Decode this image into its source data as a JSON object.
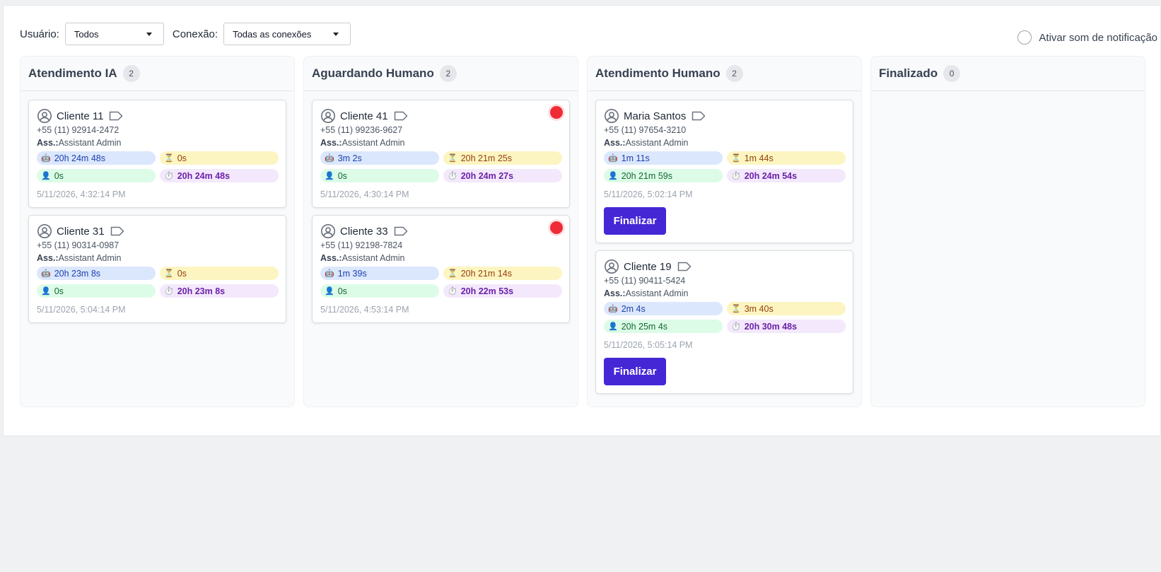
{
  "filters": {
    "user_label": "Usuário:",
    "user_value": "Todos",
    "conn_label": "Conexão:",
    "conn_value": "Todas as conexões"
  },
  "notification": {
    "label": "Ativar som de notificação"
  },
  "columns": [
    {
      "title": "Atendimento IA",
      "count": "2",
      "cards": [
        {
          "name": "Cliente 11",
          "phone": "+55 (11) 92914-2472",
          "ass_label": "Ass.:",
          "assignee": "Assistant Admin",
          "ai": "20h 24m 48s",
          "wait": "0s",
          "human": "0s",
          "total": "20h 24m 48s",
          "date": "5/11/2026, 4:32:14 PM"
        },
        {
          "name": "Cliente 31",
          "phone": "+55 (11) 90314-0987",
          "ass_label": "Ass.:",
          "assignee": "Assistant Admin",
          "ai": "20h 23m 8s",
          "wait": "0s",
          "human": "0s",
          "total": "20h 23m 8s",
          "date": "5/11/2026, 5:04:14 PM"
        }
      ]
    },
    {
      "title": "Aguardando Humano",
      "count": "2",
      "cards": [
        {
          "name": "Cliente 41",
          "phone": "+55 (11) 99236-9627",
          "ass_label": "Ass.:",
          "assignee": "Assistant Admin",
          "ai": "3m 2s",
          "wait": "20h 21m 25s",
          "human": "0s",
          "total": "20h 24m 27s",
          "date": "5/11/2026, 4:30:14 PM"
        },
        {
          "name": "Cliente 33",
          "phone": "+55 (11) 92198-7824",
          "ass_label": "Ass.:",
          "assignee": "Assistant Admin",
          "ai": "1m 39s",
          "wait": "20h 21m 14s",
          "human": "0s",
          "total": "20h 22m 53s",
          "date": "5/11/2026, 4:53:14 PM"
        }
      ]
    },
    {
      "title": "Atendimento Humano",
      "count": "2",
      "cards": [
        {
          "name": "Maria Santos",
          "phone": "+55 (11) 97654-3210",
          "ass_label": "Ass.:",
          "assignee": "Assistant Admin",
          "ai": "1m 11s",
          "wait": "1m 44s",
          "human": "20h 21m 59s",
          "total": "20h 24m 54s",
          "date": "5/11/2026, 5:02:14 PM",
          "button": "Finalizar"
        },
        {
          "name": "Cliente 19",
          "phone": "+55 (11) 90411-5424",
          "ass_label": "Ass.:",
          "assignee": "Assistant Admin",
          "ai": "2m 4s",
          "wait": "3m 40s",
          "human": "20h 25m 4s",
          "total": "20h 30m 48s",
          "date": "5/11/2026, 5:05:14 PM",
          "button": "Finalizar"
        }
      ]
    },
    {
      "title": "Finalizado",
      "count": "0",
      "cards": []
    }
  ],
  "icons": {
    "ai": "robot-icon",
    "wait": "hourglass-icon",
    "human": "person-icon",
    "total": "stopwatch-icon",
    "user": "user-circle-icon",
    "tag": "tag-icon",
    "alert": "red-alert-dot"
  },
  "colors": {
    "accent": "#4527d6",
    "alert": "#ef2b35"
  }
}
